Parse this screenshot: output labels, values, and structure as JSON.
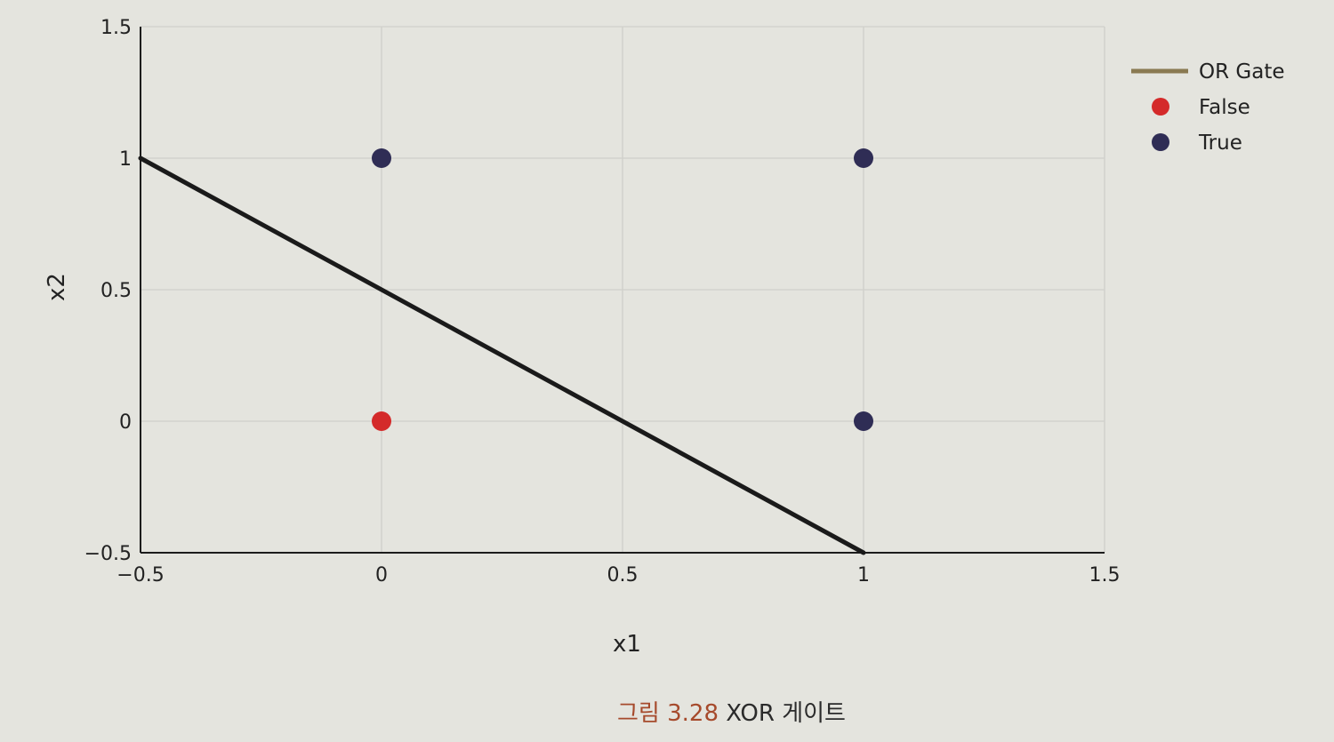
{
  "chart_data": {
    "type": "scatter",
    "xlabel": "x1",
    "ylabel": "x2",
    "xlim": [
      -0.5,
      1.5
    ],
    "ylim": [
      -0.5,
      1.5
    ],
    "xticks": [
      "−0.5",
      "0",
      "0.5",
      "1",
      "1.5"
    ],
    "xtick_values": [
      -0.5,
      0,
      0.5,
      1,
      1.5
    ],
    "yticks": [
      "−0.5",
      "0",
      "0.5",
      "1",
      "1.5"
    ],
    "ytick_values": [
      -0.5,
      0,
      0.5,
      1,
      1.5
    ],
    "grid": true,
    "legend_position": "top-right",
    "series": [
      {
        "name": "OR Gate",
        "kind": "line",
        "color": "#1a1a1a",
        "x": [
          -0.5,
          1
        ],
        "y": [
          1,
          -0.5
        ]
      },
      {
        "name": "False",
        "kind": "markers",
        "color": "#d42a2a",
        "x": [
          0
        ],
        "y": [
          0
        ]
      },
      {
        "name": "True",
        "kind": "markers",
        "color": "#2f2d55",
        "x": [
          0,
          1,
          1
        ],
        "y": [
          1,
          1,
          0
        ]
      }
    ]
  },
  "caption": {
    "number": "그림 3.28",
    "text": "XOR 게이트"
  }
}
